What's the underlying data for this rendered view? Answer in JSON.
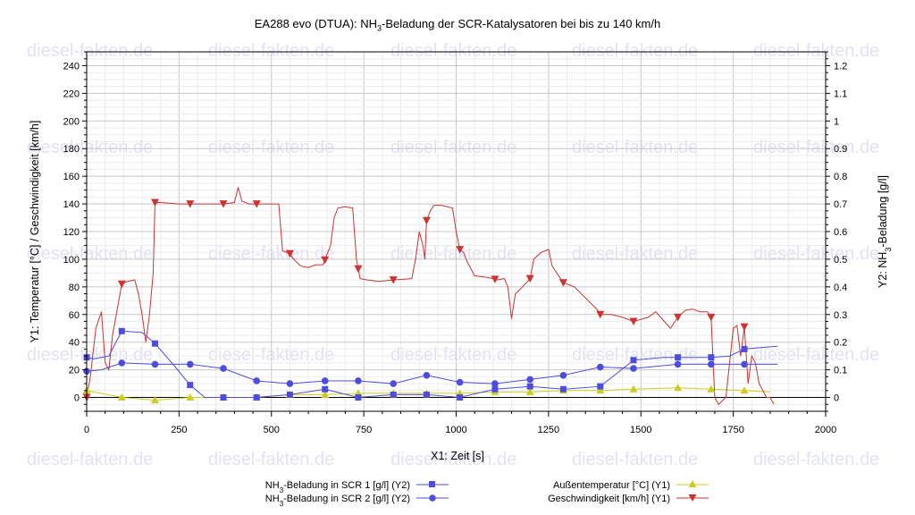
{
  "watermark": "diesel-fakten.de",
  "chart_data": {
    "type": "line",
    "title_pre": "EA288 evo (DTUA): NH",
    "title_sub": "3",
    "title_post": "-Beladung der SCR-Katalysatoren bei bis zu 140 km/h",
    "xlabel": "X1: Zeit [s]",
    "ylabel_left": "Y1: Temperatur [°C] / Geschwindigkeit [km/h]",
    "ylabel_right_pre": "Y2: NH",
    "ylabel_right_sub": "3",
    "ylabel_right_post": "-Beladung [g/l]",
    "xlim": [
      0,
      2000
    ],
    "ylim_left": [
      -10,
      250
    ],
    "ylim_right": [
      -0.05,
      1.25
    ],
    "xticks": [
      "0",
      "250",
      "500",
      "750",
      "1000",
      "1250",
      "1500",
      "1750",
      "2000"
    ],
    "yticks_left": [
      "0",
      "20",
      "40",
      "60",
      "80",
      "100",
      "120",
      "140",
      "160",
      "180",
      "200",
      "220",
      "240"
    ],
    "yticks_right": [
      "0",
      "0.1",
      "0.2",
      "0.3",
      "0.4",
      "0.5",
      "0.6",
      "0.7",
      "0.8",
      "0.9",
      "1",
      "1.1",
      "1.2"
    ],
    "grid": true,
    "legend_position": "bottom",
    "series": [
      {
        "name_pre": "NH",
        "name_sub": "3",
        "name_post": "-Beladung in SCR 1 [g/l] (Y2)",
        "axis": "right",
        "color": "#4d4ddd",
        "marker": "square",
        "x": [
          0,
          20,
          60,
          95,
          150,
          185,
          240,
          280,
          320,
          370,
          460,
          550,
          645,
          735,
          830,
          920,
          1010,
          1105,
          1200,
          1290,
          1390,
          1480,
          1560,
          1600,
          1690,
          1740,
          1780,
          1820,
          1870
        ],
        "y": [
          0.145,
          0.14,
          0.15,
          0.24,
          0.235,
          0.195,
          0.11,
          0.045,
          0.0,
          0.0,
          0.0,
          0.01,
          0.03,
          0.0,
          0.01,
          0.01,
          0.0,
          0.03,
          0.04,
          0.03,
          0.04,
          0.135,
          0.145,
          0.145,
          0.145,
          0.15,
          0.175,
          0.18,
          0.185
        ]
      },
      {
        "name_pre": "NH",
        "name_sub": "3",
        "name_post": "-Beladung in SCR 2 [g/l] (Y2)",
        "axis": "right",
        "color": "#4d4ddd",
        "marker": "circle",
        "x": [
          0,
          40,
          95,
          185,
          280,
          370,
          460,
          550,
          645,
          735,
          830,
          920,
          1010,
          1105,
          1200,
          1290,
          1390,
          1480,
          1600,
          1690,
          1780,
          1870
        ],
        "y": [
          0.095,
          0.1,
          0.125,
          0.12,
          0.12,
          0.105,
          0.06,
          0.05,
          0.06,
          0.06,
          0.05,
          0.08,
          0.055,
          0.05,
          0.065,
          0.08,
          0.11,
          0.105,
          0.12,
          0.12,
          0.12,
          0.12
        ]
      },
      {
        "name": "Außentemperatur [°C] (Y1)",
        "axis": "left",
        "color": "#cccc22",
        "marker": "triangle-up",
        "x": [
          0,
          95,
          185,
          280,
          370,
          460,
          550,
          645,
          735,
          830,
          920,
          1010,
          1105,
          1200,
          1290,
          1390,
          1480,
          1600,
          1690,
          1780,
          1850
        ],
        "y": [
          5,
          0,
          -2,
          0,
          0,
          0,
          2,
          2,
          3,
          3,
          3,
          3,
          4,
          4,
          5,
          5,
          6,
          7,
          6,
          5,
          4
        ]
      },
      {
        "name": "Geschwindigkeit [km/h] (Y1)",
        "axis": "left",
        "color": "#cc3333",
        "marker": "triangle-down",
        "x": [
          0,
          10,
          25,
          40,
          50,
          60,
          70,
          80,
          95,
          110,
          130,
          140,
          150,
          160,
          170,
          180,
          185,
          200,
          250,
          280,
          320,
          350,
          370,
          400,
          410,
          420,
          440,
          460,
          500,
          520,
          530,
          550,
          560,
          580,
          600,
          620,
          640,
          660,
          670,
          680,
          700,
          720,
          730,
          740,
          760,
          790,
          830,
          880,
          890,
          900,
          910,
          915,
          920,
          930,
          940,
          960,
          990,
          1000,
          1010,
          1020,
          1030,
          1050,
          1080,
          1100,
          1110,
          1130,
          1140,
          1150,
          1160,
          1180,
          1200,
          1210,
          1230,
          1250,
          1260,
          1290,
          1320,
          1350,
          1380,
          1390,
          1420,
          1450,
          1460,
          1480,
          1520,
          1540,
          1560,
          1580,
          1600,
          1620,
          1640,
          1660,
          1680,
          1690,
          1700,
          1710,
          1730,
          1750,
          1760,
          1770,
          1780,
          1790,
          1800,
          1810,
          1820,
          1830,
          1840,
          1850,
          1860
        ],
        "y": [
          0,
          15,
          50,
          62,
          25,
          20,
          45,
          60,
          82,
          84,
          85,
          75,
          60,
          40,
          60,
          90,
          141,
          141,
          140,
          140,
          140,
          140,
          140,
          141,
          152,
          142,
          140,
          140,
          140,
          140,
          106,
          104,
          100,
          95,
          94,
          96,
          96,
          110,
          130,
          137,
          138,
          137,
          100,
          86,
          85,
          84,
          85,
          86,
          100,
          120,
          110,
          100,
          128,
          135,
          139,
          139,
          137,
          120,
          107,
          105,
          98,
          88,
          87,
          86,
          85,
          86,
          80,
          57,
          75,
          80,
          86,
          100,
          105,
          107,
          95,
          83,
          80,
          72,
          64,
          60,
          60,
          58,
          57,
          55,
          58,
          62,
          56,
          50,
          58,
          63,
          64,
          62,
          62,
          58,
          0,
          -5,
          0,
          50,
          52,
          30,
          51,
          10,
          30,
          25,
          10,
          5,
          0,
          0,
          -5
        ]
      }
    ]
  }
}
